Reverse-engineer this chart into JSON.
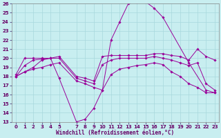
{
  "xlabel": "Windchill (Refroidissement éolien,°C)",
  "background_color": "#c8eef0",
  "grid_color": "#a8d8dc",
  "line_color": "#990099",
  "xlim": [
    -0.5,
    23.5
  ],
  "ylim": [
    13,
    26
  ],
  "yticks": [
    13,
    14,
    15,
    16,
    17,
    18,
    19,
    20,
    21,
    22,
    23,
    24,
    25,
    26
  ],
  "xticks": [
    0,
    1,
    2,
    3,
    4,
    5,
    7,
    8,
    9,
    10,
    11,
    12,
    13,
    14,
    15,
    16,
    17,
    18,
    19,
    20,
    21,
    22,
    23
  ],
  "series": [
    {
      "x": [
        0,
        1,
        2,
        3,
        4,
        5,
        7,
        8,
        9,
        10,
        11,
        12,
        13,
        14,
        15,
        16,
        17,
        20,
        22,
        23
      ],
      "y": [
        18,
        18.5,
        19,
        19.8,
        20,
        17.8,
        13,
        13.3,
        14.5,
        16.5,
        22,
        24,
        26,
        26.2,
        26.2,
        25.5,
        24.5,
        19.5,
        16.5,
        16.2
      ]
    },
    {
      "x": [
        0,
        1,
        2,
        3,
        4,
        5,
        7,
        8,
        9,
        10,
        11,
        12,
        13,
        14,
        15,
        16,
        17,
        18,
        19,
        20,
        21,
        22,
        23
      ],
      "y": [
        18.2,
        20,
        20,
        20,
        20,
        20.2,
        18,
        17.8,
        17.5,
        20.2,
        20.3,
        20.3,
        20.3,
        20.3,
        20.3,
        20.5,
        20.5,
        20.3,
        20.2,
        19.8,
        21,
        20.2,
        19.8
      ]
    },
    {
      "x": [
        0,
        1,
        2,
        3,
        4,
        5,
        7,
        8,
        9,
        10,
        11,
        12,
        13,
        14,
        15,
        16,
        17,
        18,
        19,
        20,
        21,
        22,
        23
      ],
      "y": [
        18,
        19.2,
        19.8,
        19.9,
        20,
        20,
        17.8,
        17.5,
        17.2,
        19.3,
        19.8,
        20,
        20,
        20,
        20,
        20.2,
        20,
        19.8,
        19.5,
        19.2,
        19.5,
        17.2,
        16.5
      ]
    },
    {
      "x": [
        0,
        1,
        2,
        3,
        4,
        5,
        7,
        8,
        9,
        10,
        11,
        12,
        13,
        14,
        15,
        16,
        17,
        18,
        19,
        20,
        21,
        22,
        23
      ],
      "y": [
        18,
        18.5,
        18.8,
        19,
        19.3,
        19.5,
        17.5,
        17.2,
        16.8,
        16.5,
        18.2,
        18.8,
        19,
        19.2,
        19.3,
        19.5,
        19.3,
        18.5,
        18,
        17.2,
        16.8,
        16.2,
        16.2
      ]
    }
  ]
}
